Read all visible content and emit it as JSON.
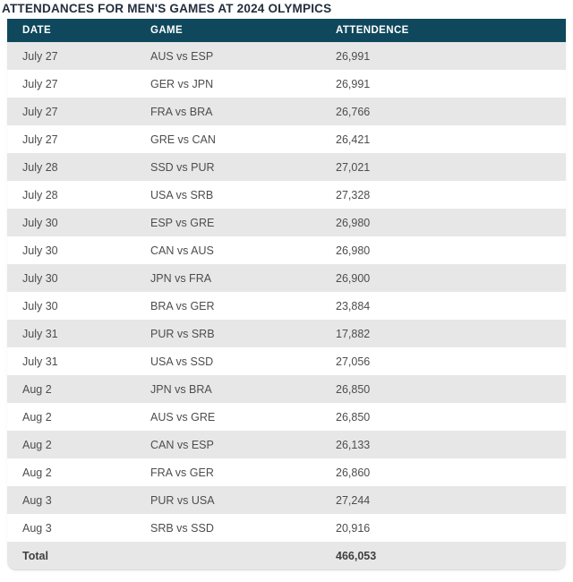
{
  "page": {
    "title": "ATTENDANCES FOR MEN'S GAMES AT 2024 OLYMPICS"
  },
  "colors": {
    "header_bg": "#0f485c",
    "header_text": "#ffffff",
    "row_alt_bg": "#e7e7e7",
    "row_text": "#4d4d4d",
    "title_text": "#232e3d"
  },
  "table": {
    "columns": [
      "DATE",
      "GAME",
      "ATTENDENCE"
    ],
    "rows": [
      {
        "date": "July 27",
        "game": "AUS vs ESP",
        "attendance": "26,991"
      },
      {
        "date": "July 27",
        "game": "GER vs JPN",
        "attendance": "26,991"
      },
      {
        "date": "July 27",
        "game": "FRA vs BRA",
        "attendance": "26,766"
      },
      {
        "date": "July 27",
        "game": "GRE vs CAN",
        "attendance": "26,421"
      },
      {
        "date": "July 28",
        "game": "SSD vs PUR",
        "attendance": "27,021"
      },
      {
        "date": "July 28",
        "game": "USA vs SRB",
        "attendance": "27,328"
      },
      {
        "date": "July 30",
        "game": "ESP vs GRE",
        "attendance": "26,980"
      },
      {
        "date": "July 30",
        "game": "CAN vs AUS",
        "attendance": "26,980"
      },
      {
        "date": "July 30",
        "game": "JPN vs FRA",
        "attendance": "26,900"
      },
      {
        "date": "July 30",
        "game": "BRA vs GER",
        "attendance": "23,884"
      },
      {
        "date": "July 31",
        "game": "PUR vs SRB",
        "attendance": "17,882"
      },
      {
        "date": "July 31",
        "game": "USA vs SSD",
        "attendance": "27,056"
      },
      {
        "date": "Aug 2",
        "game": "JPN vs BRA",
        "attendance": "26,850"
      },
      {
        "date": "Aug 2",
        "game": "AUS vs GRE",
        "attendance": "26,850"
      },
      {
        "date": "Aug 2",
        "game": "CAN vs ESP",
        "attendance": "26,133"
      },
      {
        "date": "Aug 2",
        "game": "FRA vs GER",
        "attendance": "26,860"
      },
      {
        "date": "Aug 3",
        "game": "PUR vs USA",
        "attendance": "27,244"
      },
      {
        "date": "Aug 3",
        "game": "SRB vs SSD",
        "attendance": "20,916"
      }
    ],
    "total_label": "Total",
    "total_value": "466,053"
  }
}
